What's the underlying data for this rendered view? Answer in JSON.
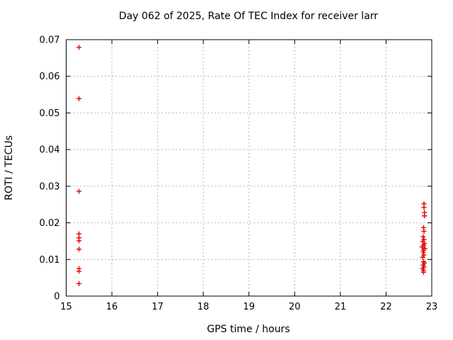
{
  "chart_data": {
    "type": "scatter",
    "title": "Day 062 of 2025, Rate Of TEC Index for receiver larr",
    "xlabel": "GPS time / hours",
    "ylabel": "ROTI / TECUs",
    "xlim": [
      15,
      23
    ],
    "ylim": [
      0,
      0.07
    ],
    "xticks": [
      15,
      16,
      17,
      18,
      19,
      20,
      21,
      22,
      23
    ],
    "xtick_labels": [
      "15",
      "16",
      "17",
      "18",
      "19",
      "20",
      "21",
      "22",
      "23"
    ],
    "yticks": [
      0,
      0.01,
      0.02,
      0.03,
      0.04,
      0.05,
      0.06,
      0.07
    ],
    "ytick_labels": [
      "0",
      "0.01",
      "0.02",
      "0.03",
      "0.04",
      "0.05",
      "0.06",
      "0.07"
    ],
    "grid": true,
    "grid_style": "dotted",
    "grid_color": "#9e9e9e",
    "border_color": "#000000",
    "legend": "none",
    "marker": "plus",
    "marker_color": "#e00000",
    "series": [
      {
        "name": "ROTI",
        "color": "#e00000",
        "points": [
          [
            15.28,
            0.0679
          ],
          [
            15.28,
            0.0539
          ],
          [
            15.28,
            0.0286
          ],
          [
            15.28,
            0.017
          ],
          [
            15.28,
            0.0159
          ],
          [
            15.28,
            0.0151
          ],
          [
            15.28,
            0.0128
          ],
          [
            15.28,
            0.0075
          ],
          [
            15.28,
            0.0068
          ],
          [
            15.28,
            0.0034
          ],
          [
            22.83,
            0.0252
          ],
          [
            22.83,
            0.0242
          ],
          [
            22.84,
            0.0228
          ],
          [
            22.84,
            0.0219
          ],
          [
            22.82,
            0.0187
          ],
          [
            22.83,
            0.0177
          ],
          [
            22.81,
            0.0162
          ],
          [
            22.83,
            0.0154
          ],
          [
            22.8,
            0.0149
          ],
          [
            22.84,
            0.0144
          ],
          [
            22.82,
            0.0139
          ],
          [
            22.79,
            0.0134
          ],
          [
            22.85,
            0.013
          ],
          [
            22.82,
            0.0125
          ],
          [
            22.81,
            0.012
          ],
          [
            22.83,
            0.0112
          ],
          [
            22.8,
            0.0106
          ],
          [
            22.82,
            0.0094
          ],
          [
            22.84,
            0.009
          ],
          [
            22.81,
            0.0085
          ],
          [
            22.83,
            0.008
          ],
          [
            22.8,
            0.0075
          ],
          [
            22.82,
            0.007
          ],
          [
            22.82,
            0.0065
          ]
        ]
      }
    ]
  }
}
